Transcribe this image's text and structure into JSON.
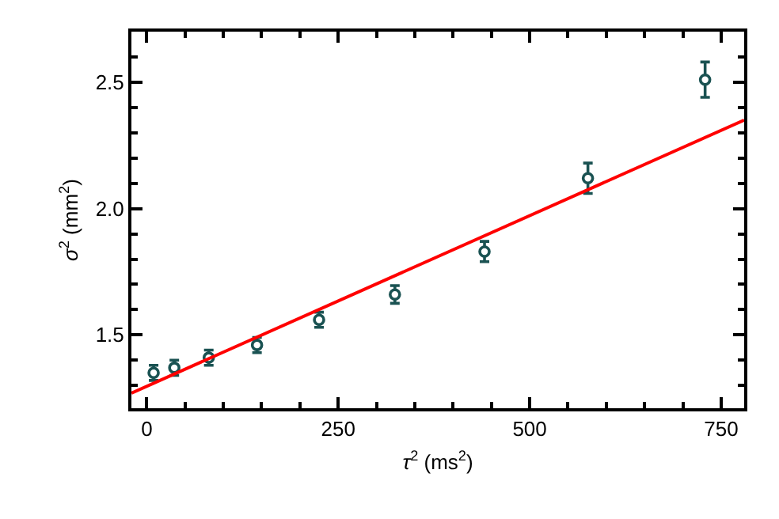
{
  "chart_data": {
    "type": "scatter",
    "xlabel": "τ$^{2}$ (ms$^{2}$)",
    "ylabel": "σ$^{2}$ (mm$^{2}$)",
    "xlim": [
      -20,
      780
    ],
    "ylim": [
      1.21,
      2.7
    ],
    "xticks": [
      0,
      {
        "value": 50,
        "label": null
      },
      {
        "value": 100,
        "label": null
      },
      {
        "value": 150,
        "label": null
      },
      {
        "value": 200,
        "label": null
      },
      250,
      {
        "value": 300,
        "label": null
      },
      {
        "value": 350,
        "label": null
      },
      {
        "value": 400,
        "label": null
      },
      {
        "value": 450,
        "label": null
      },
      500,
      {
        "value": 550,
        "label": null
      },
      {
        "value": 600,
        "label": null
      },
      {
        "value": 650,
        "label": null
      },
      {
        "value": 700,
        "label": null
      },
      750
    ],
    "yticks": [
      {
        "value": 1.3,
        "label": null
      },
      {
        "value": 1.4,
        "label": null
      },
      {
        "value": 1.5,
        "label": "1.5"
      },
      {
        "value": 1.6,
        "label": null
      },
      {
        "value": 1.7,
        "label": null
      },
      {
        "value": 1.8,
        "label": null
      },
      {
        "value": 1.9,
        "label": null
      },
      {
        "value": 2.0,
        "label": "2.0"
      },
      {
        "value": 2.1,
        "label": null
      },
      {
        "value": 2.2,
        "label": null
      },
      {
        "value": 2.3,
        "label": null
      },
      {
        "value": 2.4,
        "label": null
      },
      {
        "value": 2.5,
        "label": "2.5"
      },
      {
        "value": 2.6,
        "label": null
      }
    ],
    "marker": "circle",
    "series": [
      {
        "color": "#1a5252",
        "x": [
          9,
          36,
          81,
          144,
          225,
          324,
          441,
          576,
          729
        ],
        "values": [
          1.35,
          1.37,
          1.41,
          1.46,
          1.56,
          1.66,
          1.83,
          2.12,
          2.51
        ],
        "errors": [
          0.03,
          0.03,
          0.03,
          0.03,
          0.03,
          0.035,
          0.04,
          0.06,
          0.07
        ]
      },
      {
        "type": "line",
        "color": "#ff0000",
        "line_style": "solid",
        "marker": "none",
        "x": [
          -20,
          780
        ],
        "values": [
          1.27,
          2.35
        ]
      }
    ]
  }
}
